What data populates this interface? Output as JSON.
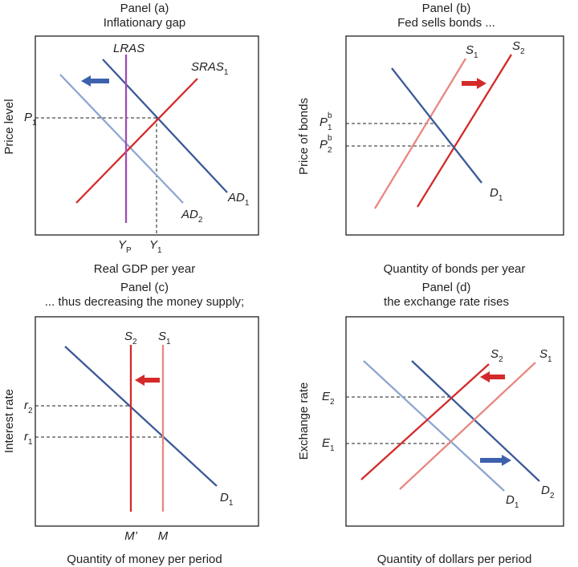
{
  "colors": {
    "navy": "#3b5998",
    "light_blue": "#8ea6d0",
    "red": "#d42a2a",
    "pink": "#e88780",
    "purple": "#a04db3",
    "arrow_blue": "#3d62ad",
    "arrow_red": "#d42a2a",
    "frame": "#231f20"
  },
  "panel_a": {
    "title_line1": "Panel (a)",
    "title_line2": "Inflationary gap",
    "ylabel": "Price level",
    "xlabel": "Real GDP per year",
    "lras": "LRAS",
    "sras_main": "SRAS",
    "sras_sub": "1",
    "ad1_main": "AD",
    "ad1_sub": "1",
    "ad2_main": "AD",
    "ad2_sub": "2",
    "p1_main": "P",
    "p1_sub": "1",
    "yp_main": "Y",
    "yp_sub": "P",
    "y1_main": "Y",
    "y1_sub": "1",
    "arrow_icon": "left-arrow-icon"
  },
  "panel_b": {
    "title_line1": "Panel (b)",
    "title_line2": "Fed sells bonds ...",
    "ylabel": "Price of bonds",
    "xlabel": "Quantity of bonds per year",
    "s1_main": "S",
    "s1_sub": "1",
    "s2_main": "S",
    "s2_sub": "2",
    "d1_main": "D",
    "d1_sub": "1",
    "p1b_main": "P",
    "p1b_sup": "b",
    "p1b_sub": "1",
    "p2b_main": "P",
    "p2b_sup": "b",
    "p2b_sub": "2",
    "arrow_icon": "right-arrow-icon"
  },
  "panel_c": {
    "title_line1": "Panel (c)",
    "title_line2": "... thus decreasing the money supply;",
    "ylabel": "Interest rate",
    "xlabel": "Quantity of money per period",
    "s2_main": "S",
    "s2_sub": "2",
    "s1_main": "S",
    "s1_sub": "1",
    "d1_main": "D",
    "d1_sub": "1",
    "r2_main": "r",
    "r2_sub": "2",
    "r1_main": "r",
    "r1_sub": "1",
    "m_prime": "M’",
    "m": "M",
    "arrow_icon": "left-arrow-icon"
  },
  "panel_d": {
    "title_line1": "Panel (d)",
    "title_line2": "the exchange rate rises",
    "ylabel": "Exchange rate",
    "xlabel": "Quantity of dollars per period",
    "s2_main": "S",
    "s2_sub": "2",
    "s1_main": "S",
    "s1_sub": "1",
    "d1_main": "D",
    "d1_sub": "1",
    "d2_main": "D",
    "d2_sub": "2",
    "e2_main": "E",
    "e2_sub": "2",
    "e1_main": "E",
    "e1_sub": "1",
    "arrow_red_icon": "left-arrow-icon",
    "arrow_blue_icon": "right-arrow-icon"
  }
}
